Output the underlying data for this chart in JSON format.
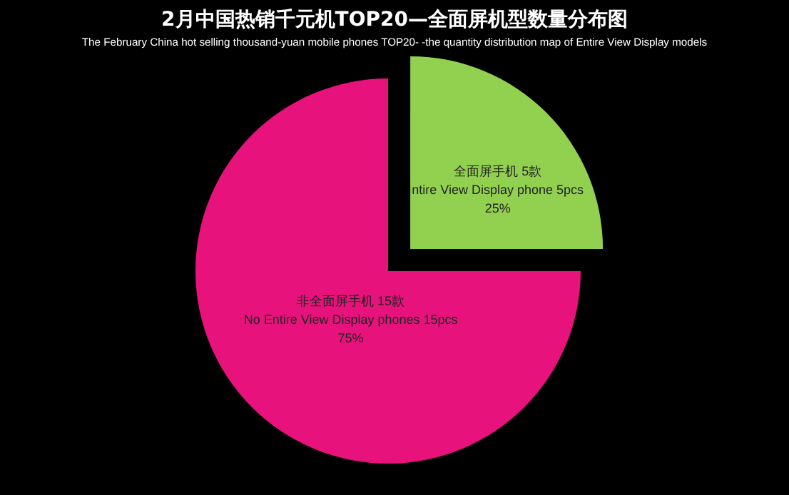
{
  "chart_data": {
    "type": "pie",
    "title": "2月中国热销千元机TOP20—全面屏机型数量分布图",
    "subtitle": "The February China hot selling thousand-yuan mobile phones TOP20- -the quantity distribution map of Entire View Display models",
    "categories": [
      "全面屏手机 5款\nntire View Display phone 5pcs",
      "非全面屏手机 15款\nNo Entire View Display phones 15pcs"
    ],
    "values": [
      25,
      75
    ],
    "value_labels": [
      "25%",
      "75%"
    ],
    "colors": [
      "#92d050",
      "#e8127c"
    ],
    "legend": false
  }
}
